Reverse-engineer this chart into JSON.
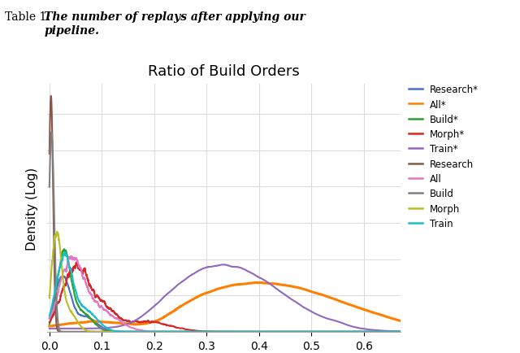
{
  "title": "Ratio of Build Orders",
  "table_text": "Table 1:  The number of replays after applying our\npipeline.",
  "xlabel": "",
  "ylabel": "Density (Log)",
  "xlim": [
    -0.005,
    0.67
  ],
  "grid": true,
  "xticks": [
    0,
    0.1,
    0.2,
    0.3,
    0.4,
    0.5,
    0.6
  ],
  "background_color": "#FFFFFF",
  "title_fontsize": 13,
  "label_fontsize": 11,
  "series_colors": {
    "Research*": "#4472C4",
    "All*": "#FF8000",
    "Build*": "#2CA02C",
    "Morph*": "#D62728",
    "Train*": "#9467BD",
    "Research": "#8C564B",
    "All": "#E377C2",
    "Build": "#7F7F7F",
    "Morph": "#BCBD22",
    "Train": "#17BECF"
  }
}
